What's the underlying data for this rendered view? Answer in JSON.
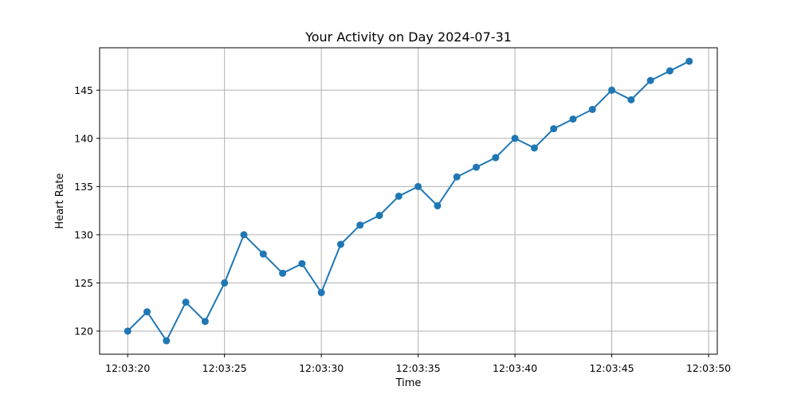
{
  "chart_data": {
    "type": "line",
    "title": "Your Activity on Day 2024-07-31",
    "xlabel": "Time",
    "ylabel": "Heart Rate",
    "grid": true,
    "line_color": "#1f77b4",
    "x_tick_labels": [
      "12:03:20",
      "12:03:25",
      "12:03:30",
      "12:03:35",
      "12:03:40",
      "12:03:45",
      "12:03:50"
    ],
    "y_tick_labels": [
      "120",
      "125",
      "130",
      "135",
      "140",
      "145"
    ],
    "x": [
      "12:03:20",
      "12:03:21",
      "12:03:22",
      "12:03:23",
      "12:03:24",
      "12:03:25",
      "12:03:26",
      "12:03:27",
      "12:03:28",
      "12:03:29",
      "12:03:30",
      "12:03:31",
      "12:03:32",
      "12:03:33",
      "12:03:34",
      "12:03:35",
      "12:03:36",
      "12:03:37",
      "12:03:38",
      "12:03:39",
      "12:03:40",
      "12:03:41",
      "12:03:42",
      "12:03:43",
      "12:03:44",
      "12:03:45",
      "12:03:46",
      "12:03:47",
      "12:03:48",
      "12:03:49"
    ],
    "values": [
      120,
      122,
      119,
      123,
      121,
      125,
      130,
      128,
      126,
      127,
      124,
      129,
      131,
      132,
      134,
      135,
      133,
      136,
      137,
      138,
      140,
      139,
      141,
      142,
      143,
      145,
      144,
      146,
      147,
      148
    ],
    "xlim": [
      "12:03:18.55",
      "12:03:50.45"
    ],
    "ylim": [
      117.6,
      149.4
    ]
  }
}
